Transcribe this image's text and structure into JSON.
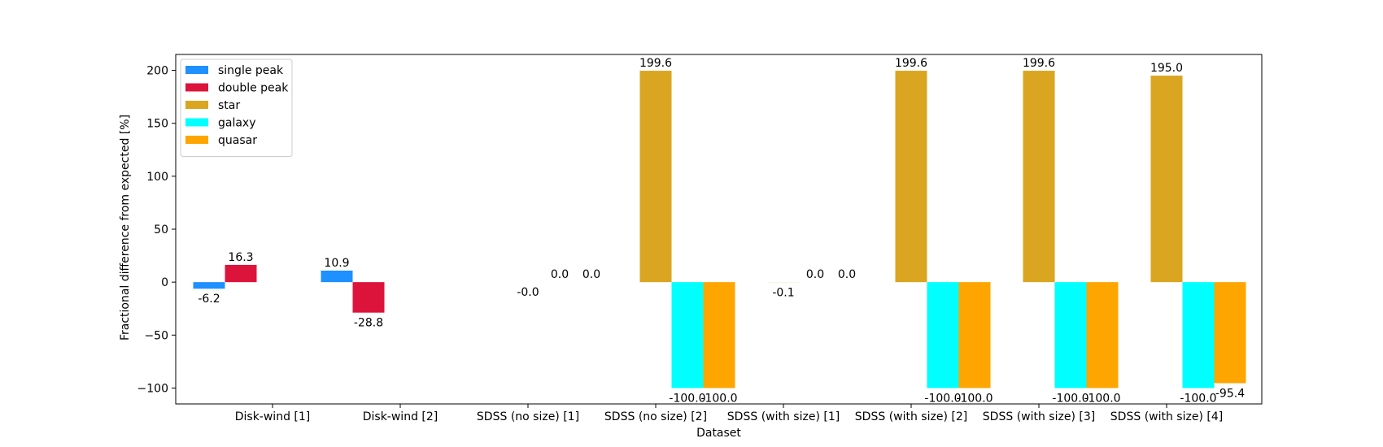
{
  "chart_data": {
    "type": "bar",
    "xlabel": "Dataset",
    "ylabel": "Fractional difference from expected [%]",
    "ylim": [
      -115,
      215
    ],
    "yticks": [
      -100,
      -50,
      0,
      50,
      100,
      150,
      200
    ],
    "grid": false,
    "legend_position": "top-left",
    "categories": [
      "Disk-wind [1]",
      "Disk-wind [2]",
      "SDSS (no size) [1]",
      "SDSS (no size) [2]",
      "SDSS (with size) [1]",
      "SDSS (with size) [2]",
      "SDSS (with size) [3]",
      "SDSS (with size) [4]"
    ],
    "series": [
      {
        "name": "single peak",
        "color": "#1e90ff",
        "values": [
          -6.2,
          10.9,
          null,
          null,
          null,
          null,
          null,
          null
        ],
        "labels": [
          "-6.2",
          "10.9",
          "",
          "",
          "",
          "",
          "",
          ""
        ]
      },
      {
        "name": "double peak",
        "color": "#dc143c",
        "values": [
          16.3,
          -28.8,
          null,
          null,
          null,
          null,
          null,
          null
        ],
        "labels": [
          "16.3",
          "-28.8",
          "",
          "",
          "",
          "",
          "",
          ""
        ]
      },
      {
        "name": "star",
        "color": "#daa520",
        "values": [
          null,
          null,
          -0.0,
          199.6,
          -0.1,
          199.6,
          199.6,
          195.0
        ],
        "labels": [
          "",
          "",
          "-0.0",
          "199.6",
          "-0.1",
          "199.6",
          "199.6",
          "195.0"
        ]
      },
      {
        "name": "galaxy",
        "color": "#00ffff",
        "values": [
          null,
          null,
          0.0,
          -100.0,
          0.0,
          -100.0,
          -100.0,
          -100.0
        ],
        "labels": [
          "",
          "",
          "0.0",
          "-100.0",
          "0.0",
          "-100.0",
          "-100.0",
          "-100.0"
        ]
      },
      {
        "name": "quasar",
        "color": "#ffa500",
        "values": [
          null,
          null,
          0.0,
          -100.0,
          0.0,
          -100.0,
          -100.0,
          -95.4
        ],
        "labels": [
          "",
          "",
          "0.0",
          "-100.0",
          "0.0",
          "-100.0",
          "-100.0",
          "-95.4"
        ]
      }
    ]
  }
}
